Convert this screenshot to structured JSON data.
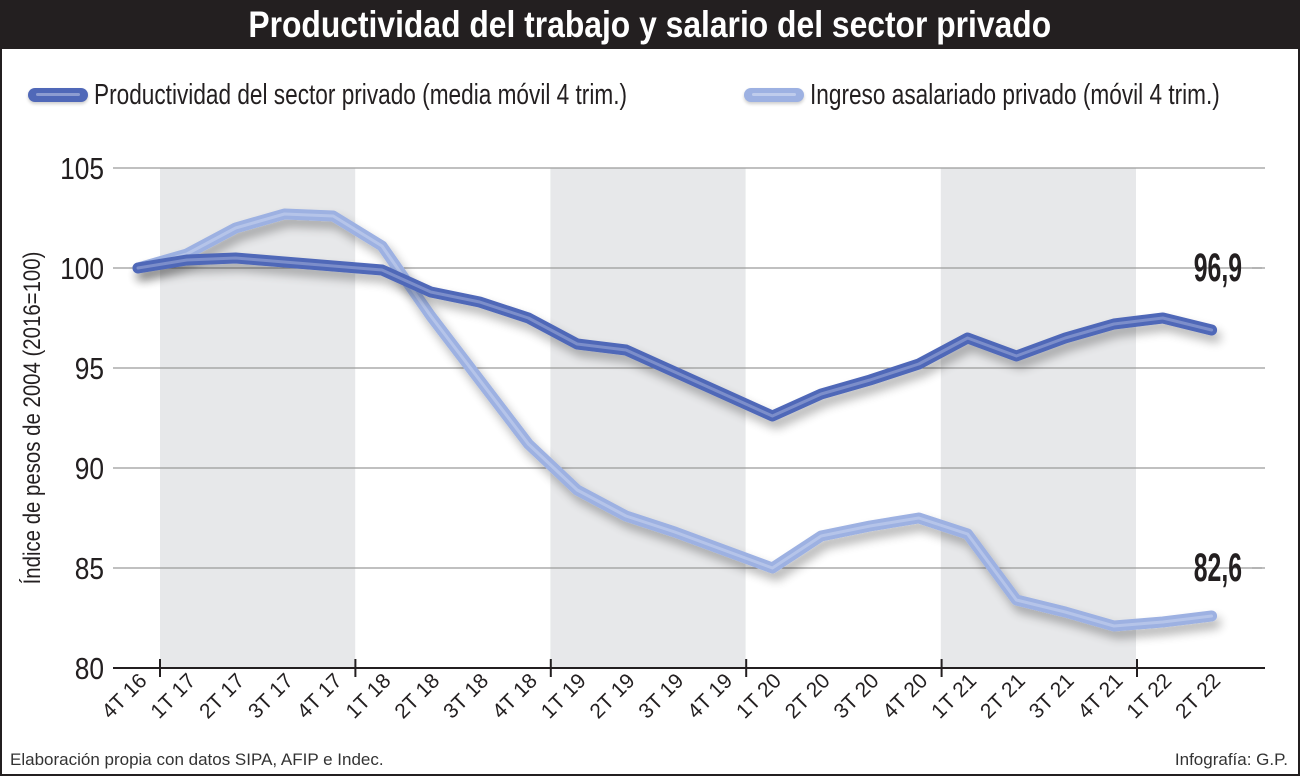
{
  "chart_data": {
    "type": "line",
    "title": "Productividad del trabajo y salario del sector privado",
    "ylabel": "Índice de pesos de 2004 (2016=100)",
    "xlabel": "",
    "ylim": [
      80,
      105
    ],
    "yticks": [
      80,
      85,
      90,
      95,
      100,
      105
    ],
    "grid": true,
    "legend_placement": "top",
    "categories": [
      "4T 16",
      "1T 17",
      "2T 17",
      "3T 17",
      "4T 17",
      "1T 18",
      "2T 18",
      "3T 18",
      "4T 18",
      "1T 19",
      "2T 19",
      "3T 19",
      "4T 19",
      "1T 20",
      "2T 20",
      "3T 20",
      "4T 20",
      "1T 21",
      "2T 21",
      "3T 21",
      "4T 21",
      "1T 22",
      "2T 22"
    ],
    "shaded_periods": [
      [
        "1T 17",
        "4T 17"
      ],
      [
        "1T 19",
        "4T 19"
      ],
      [
        "1T 21",
        "4T 21"
      ]
    ],
    "series": [
      {
        "name": "Productividad del sector privado (media móvil 4 trim.)",
        "color": "#5068b8",
        "values": [
          100.0,
          100.4,
          100.5,
          100.3,
          100.1,
          99.9,
          98.8,
          98.3,
          97.5,
          96.2,
          95.9,
          94.8,
          93.7,
          92.6,
          93.7,
          94.4,
          95.2,
          96.5,
          95.6,
          96.5,
          97.2,
          97.5,
          96.9
        ],
        "end_label": "96,9"
      },
      {
        "name": "Ingreso asalariado privado (móvil 4 trim.)",
        "color": "#9db1e2",
        "values": [
          100.0,
          100.7,
          102.0,
          102.7,
          102.6,
          101.1,
          97.6,
          94.4,
          91.2,
          88.9,
          87.6,
          86.8,
          85.9,
          85.0,
          86.6,
          87.1,
          87.5,
          86.7,
          83.4,
          82.8,
          82.1,
          82.3,
          82.6
        ],
        "end_label": "82,6"
      }
    ]
  },
  "footer": {
    "source": "Elaboración propia con datos SIPA, AFIP e Indec.",
    "credit": "Infografía: G.P."
  }
}
